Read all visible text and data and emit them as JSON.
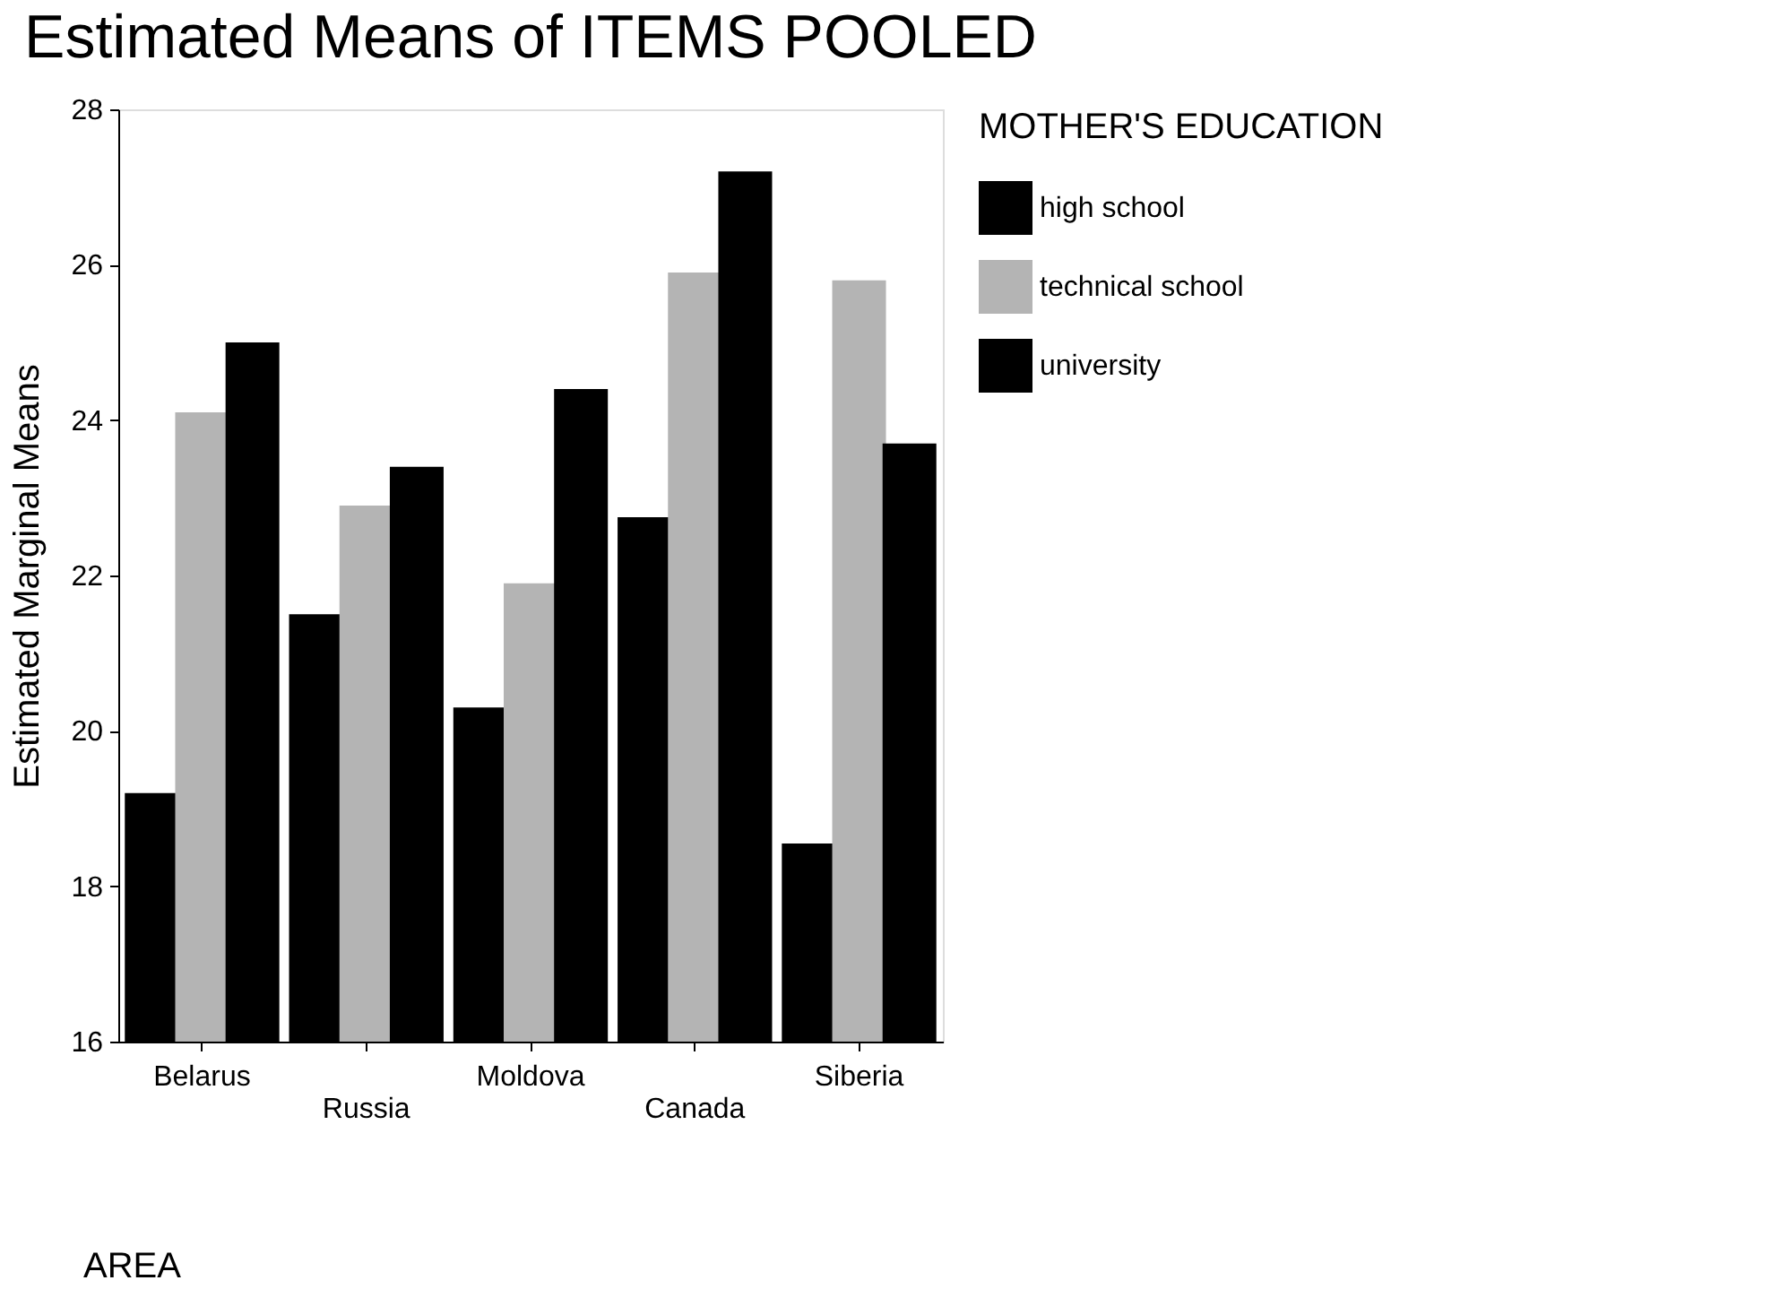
{
  "chart_data": {
    "type": "bar",
    "title": "Estimated Means of ITEMS POOLED",
    "xlabel": "AREA",
    "ylabel": "Estimated Marginal Means",
    "legend_title": "MOTHER'S EDUCATION",
    "categories": [
      "Belarus",
      "Russia",
      "Moldova",
      "Canada",
      "Siberia"
    ],
    "series": [
      {
        "name": "high school",
        "color": "#000000",
        "values": [
          19.2,
          21.5,
          20.3,
          22.75,
          18.55
        ]
      },
      {
        "name": "technical school",
        "color": "#b4b4b4",
        "values": [
          24.1,
          22.9,
          21.9,
          25.9,
          25.8
        ]
      },
      {
        "name": "university",
        "color": "#000000",
        "values": [
          25.0,
          23.4,
          24.4,
          27.2,
          23.7
        ]
      }
    ],
    "ylim": [
      16,
      28
    ],
    "yticks": [
      16,
      18,
      20,
      22,
      24,
      26,
      28
    ],
    "grid": false,
    "legend": "right"
  }
}
